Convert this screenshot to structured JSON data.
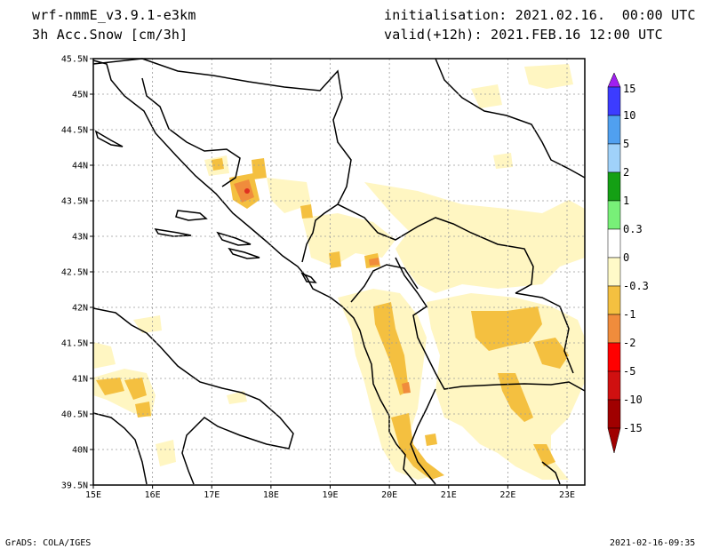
{
  "header": {
    "model": "wrf-nmmE_v3.9.1-e3km",
    "field": "3h Acc.Snow [cm/3h]",
    "init": "initialisation: 2021.02.16.  00:00 UTC",
    "valid": "valid(+12h): 2021.FEB.16 12:00 UTC"
  },
  "footer": {
    "credit": "GrADS: COLA/IGES",
    "stamp": "2021-02-16-09:35"
  },
  "map": {
    "lat_labels": [
      "45.5N",
      "45N",
      "44.5N",
      "44N",
      "43.5N",
      "43N",
      "42.5N",
      "42N",
      "41.5N",
      "41N",
      "40.5N",
      "40N",
      "39.5N"
    ],
    "lon_labels": [
      "15E",
      "16E",
      "17E",
      "18E",
      "19E",
      "20E",
      "21E",
      "22E",
      "23E"
    ],
    "lat_range": [
      39.5,
      45.5
    ],
    "lon_range": [
      15,
      23.3
    ],
    "grid": true,
    "colors": {
      "light": "#fff6c2",
      "yellow": "#f4c040",
      "orange": "#f08c3c",
      "red": "#e03020"
    }
  },
  "colorbar": {
    "labels": [
      "15",
      "10",
      "5",
      "2",
      "1",
      "0.3",
      "0",
      "-0.3",
      "-1",
      "-2",
      "-5",
      "-10",
      "-15"
    ],
    "colors": [
      "#a020f0",
      "#3c3cff",
      "#50a0f0",
      "#a0d2fa",
      "#14a014",
      "#78f078",
      "#ffffff",
      "#fffac8",
      "#f4c040",
      "#f08c3c",
      "#ff0000",
      "#d01010",
      "#a00000"
    ]
  }
}
